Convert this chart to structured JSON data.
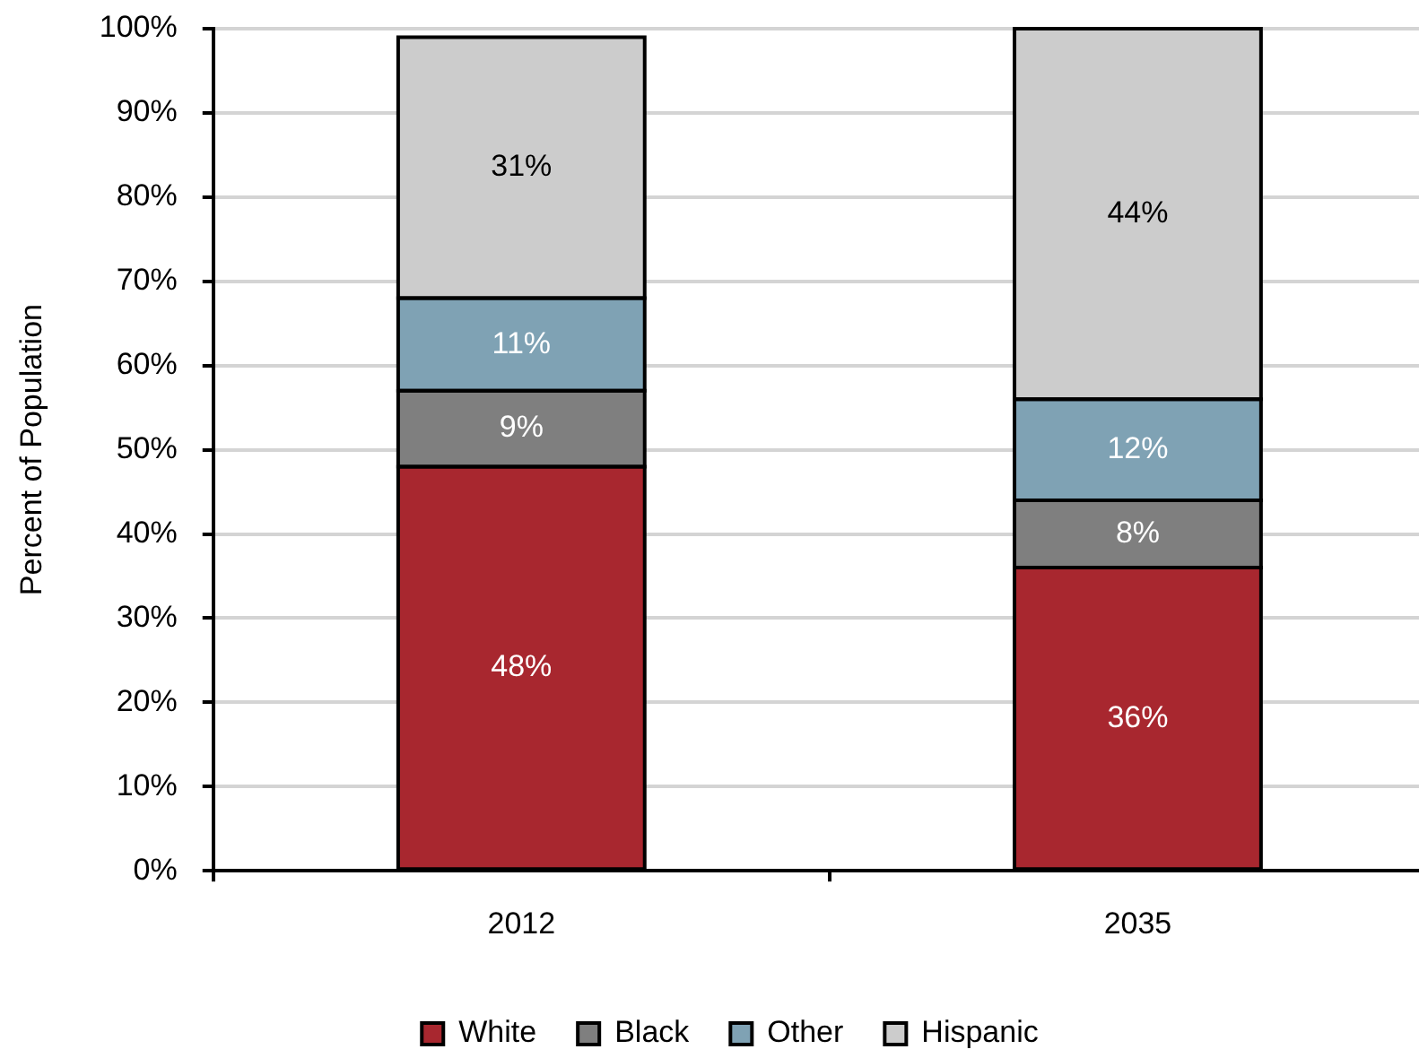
{
  "chart_data": {
    "type": "bar",
    "stacked": true,
    "categories": [
      "2012",
      "2035"
    ],
    "ylabel": "Percent of Population",
    "ylim": [
      0,
      100
    ],
    "yticks": [
      {
        "value": 0,
        "label": "0%"
      },
      {
        "value": 10,
        "label": "10%"
      },
      {
        "value": 20,
        "label": "20%"
      },
      {
        "value": 30,
        "label": "30%"
      },
      {
        "value": 40,
        "label": "40%"
      },
      {
        "value": 50,
        "label": "50%"
      },
      {
        "value": 60,
        "label": "60%"
      },
      {
        "value": 70,
        "label": "70%"
      },
      {
        "value": 80,
        "label": "80%"
      },
      {
        "value": 90,
        "label": "90%"
      },
      {
        "value": 100,
        "label": "100%"
      }
    ],
    "grid": "y",
    "legend": "bottom",
    "series": [
      {
        "name": "White",
        "color": "#a8272f",
        "values": [
          48,
          36
        ],
        "value_labels": [
          "48%",
          "36%"
        ]
      },
      {
        "name": "Black",
        "color": "#7f7f7f",
        "values": [
          9,
          8
        ],
        "value_labels": [
          "9%",
          "8%"
        ]
      },
      {
        "name": "Other",
        "color": "#7fa2b4",
        "values": [
          11,
          12
        ],
        "value_labels": [
          "11%",
          "12%"
        ]
      },
      {
        "name": "Hispanic",
        "color": "#cccccc",
        "values": [
          31,
          44
        ],
        "value_labels": [
          "31%",
          "44%"
        ]
      }
    ]
  }
}
